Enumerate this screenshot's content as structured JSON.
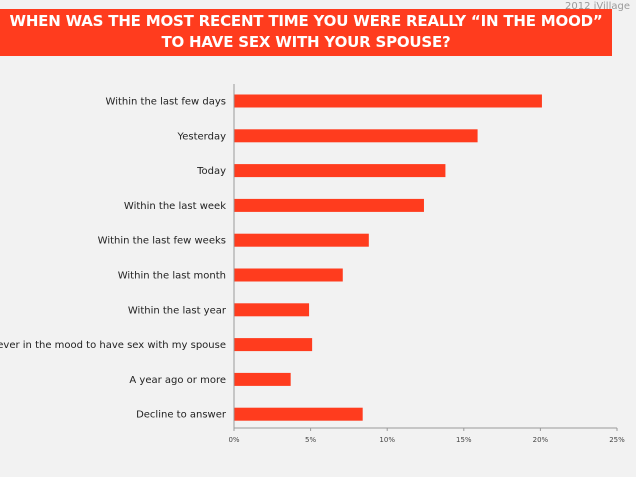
{
  "brand": "2012 iVillage",
  "title_line1": "WHEN WAS THE MOST RECENT TIME YOU WERE REALLY “IN THE MOOD”",
  "title_line2": "TO HAVE SEX WITH YOUR SPOUSE?",
  "colors": {
    "bar": "#ff3c1e",
    "banner": "#ff3c1e",
    "background": "#f2f2f2",
    "axis": "#9a9a9a"
  },
  "chart_data": {
    "type": "bar",
    "orientation": "horizontal",
    "title": "WHEN WAS THE MOST RECENT TIME YOU WERE REALLY “IN THE MOOD” TO HAVE SEX WITH YOUR SPOUSE?",
    "categories": [
      "Within the last few days",
      "Yesterday",
      "Today",
      "Within the last week",
      "Within the last few weeks",
      "Within the last month",
      "Within the last year",
      "Never in the mood to have sex with my spouse",
      "A year ago or more",
      "Decline to answer"
    ],
    "values": [
      20.1,
      15.9,
      13.8,
      12.4,
      8.8,
      7.1,
      4.9,
      5.1,
      3.7,
      8.4
    ],
    "xlim": [
      0,
      25
    ],
    "ticks": [
      "0%",
      "5%",
      "10%",
      "15%",
      "20%",
      "25%"
    ],
    "tick_values": [
      0,
      5,
      10,
      15,
      20,
      25
    ],
    "grid": false,
    "xlabel": "",
    "ylabel": ""
  }
}
